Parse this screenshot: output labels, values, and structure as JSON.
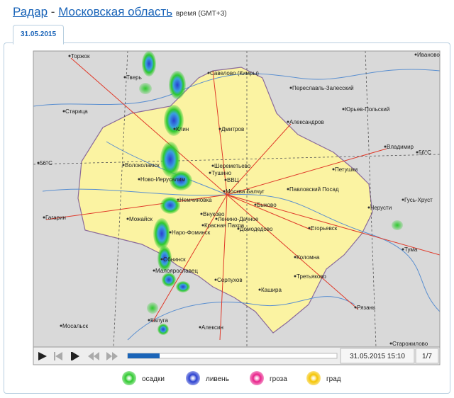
{
  "header": {
    "link": "Радар",
    "separator": "-",
    "region": "Московская область",
    "timezone": "время (GMT+3)"
  },
  "tab": "31.05.2015",
  "map": {
    "labels": [
      "Торжок",
      "Иваново",
      "Тверь",
      "Савелово (Кимры)",
      "Переславль-Залесский",
      "Старица",
      "Юрьев-Польский",
      "Дмитров",
      "Александров",
      "Клин",
      "Владимир",
      "Волоколамск",
      "56°С",
      "56°С",
      "Шереметьево",
      "Петушки",
      "Тушино",
      "Ново-Иерусалим",
      "ВВЦ",
      "Москва Балчуг",
      "Павловский Посад",
      "Немчиновка",
      "Внуково",
      "Быково",
      "Гагарин",
      "Можайск",
      "Ленино-Дачное",
      "Черусти",
      "Гусь-Хруст",
      "Красная Пахра",
      "Домодедово",
      "Егорьевск",
      "Наро-Фоминск",
      "Обнинск",
      "Тума",
      "Коломна",
      "Малоярославец",
      "Серпухов",
      "Третьяково",
      "Кашира",
      "Рязань",
      "Мосальск",
      "Калуга",
      "Алексин",
      "Старожилово"
    ]
  },
  "player": {
    "datetime": "31.05.2015 15:10",
    "frame": "1/7"
  },
  "legend": [
    {
      "label": "осадки",
      "color": "#2ec92e"
    },
    {
      "label": "ливень",
      "color": "#2a3fd0"
    },
    {
      "label": "гроза",
      "color": "#e8208a"
    },
    {
      "label": "град",
      "color": "#f5c400"
    }
  ]
}
